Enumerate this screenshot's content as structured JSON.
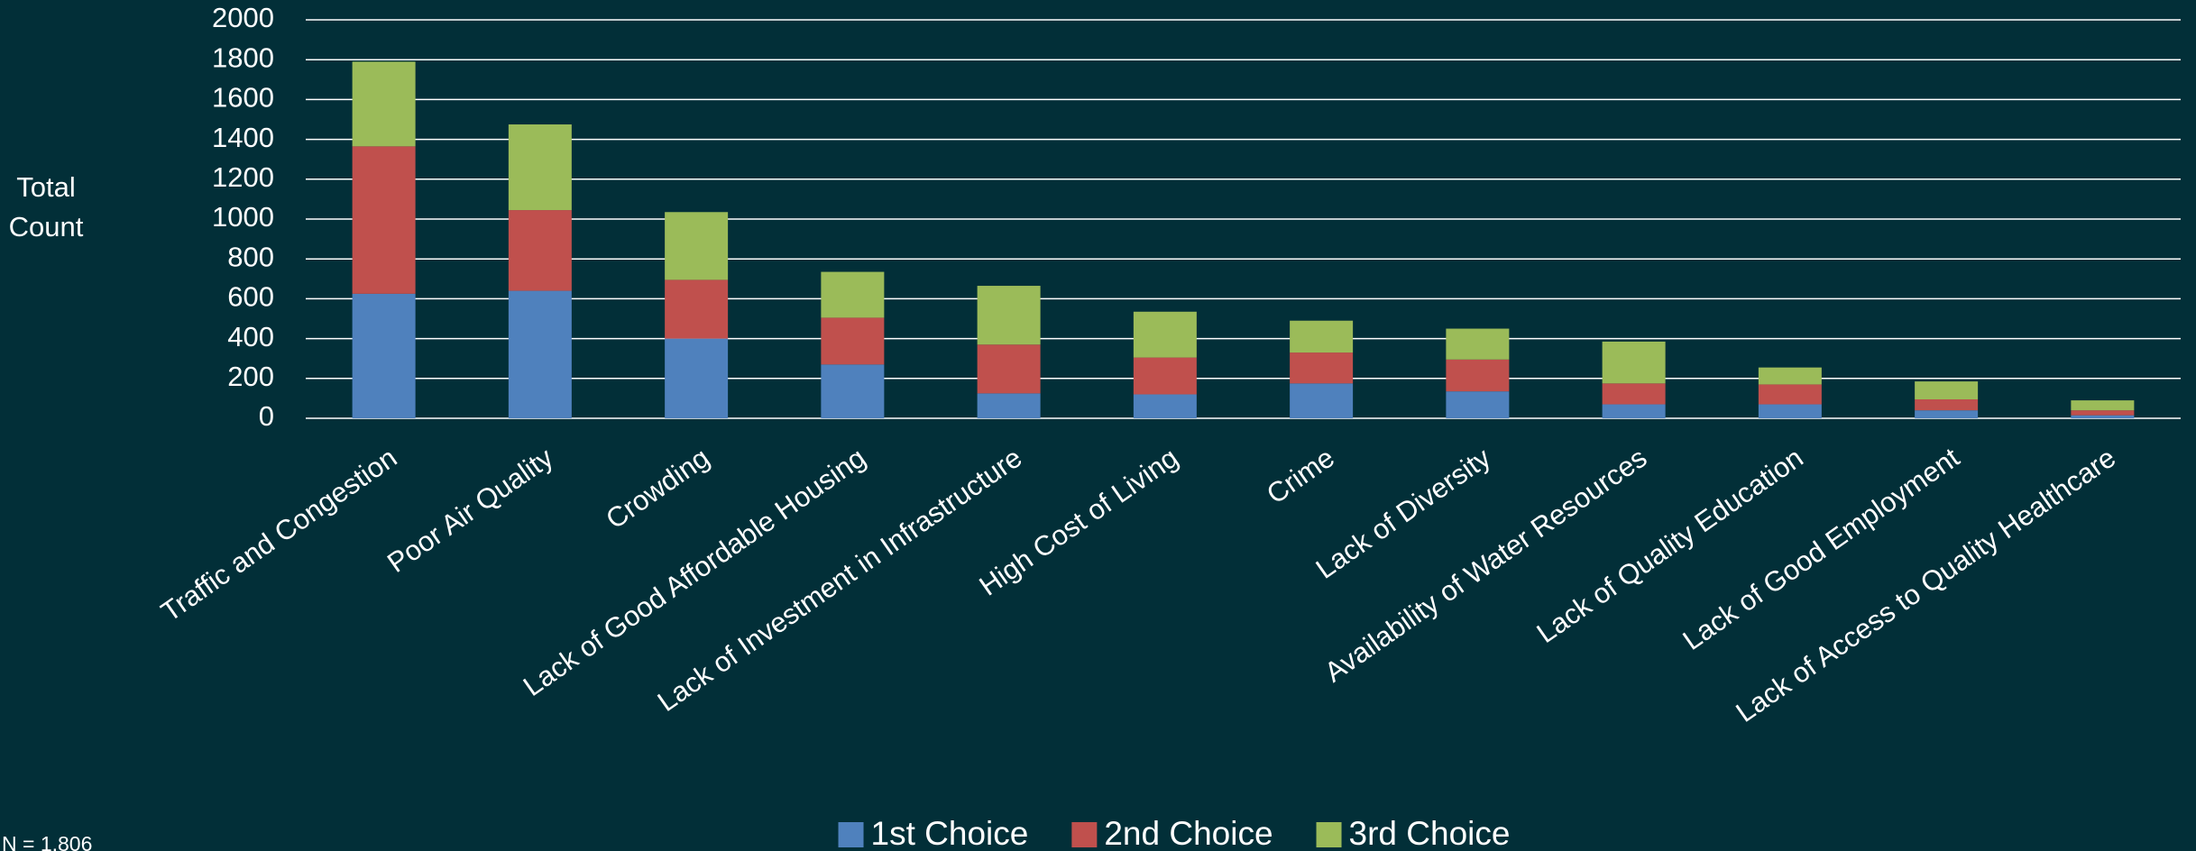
{
  "chart_data": {
    "type": "stacked_bar",
    "y_label": "Total Count",
    "note": "N = 1,806",
    "categories": [
      "Traffic and Congestion",
      "Poor Air Quality",
      "Crowding",
      "Lack of Good Affordable Housing",
      "Lack of Investment in Infrastructure",
      "High Cost of Living",
      "Crime",
      "Lack of Diversity",
      "Availability of Water Resources",
      "Lack of Quality Education",
      "Lack of Good Employment",
      "Lack of Access to Quality Healthcare"
    ],
    "series": [
      {
        "name": "1st Choice",
        "color": "#4f81bd",
        "values": [
          625,
          640,
          400,
          270,
          125,
          120,
          175,
          135,
          70,
          70,
          40,
          15
        ]
      },
      {
        "name": "2nd Choice",
        "color": "#c0504d",
        "values": [
          740,
          405,
          295,
          235,
          245,
          185,
          155,
          160,
          105,
          100,
          55,
          25
        ]
      },
      {
        "name": "3rd Choice",
        "color": "#9bbb59",
        "values": [
          425,
          430,
          340,
          230,
          295,
          230,
          160,
          155,
          210,
          85,
          90,
          50
        ]
      }
    ],
    "ylim": [
      0,
      2000
    ],
    "yticks": [
      0,
      200,
      400,
      600,
      800,
      1000,
      1200,
      1400,
      1600,
      1800,
      2000
    ],
    "grid": true,
    "legend": "bottom"
  }
}
